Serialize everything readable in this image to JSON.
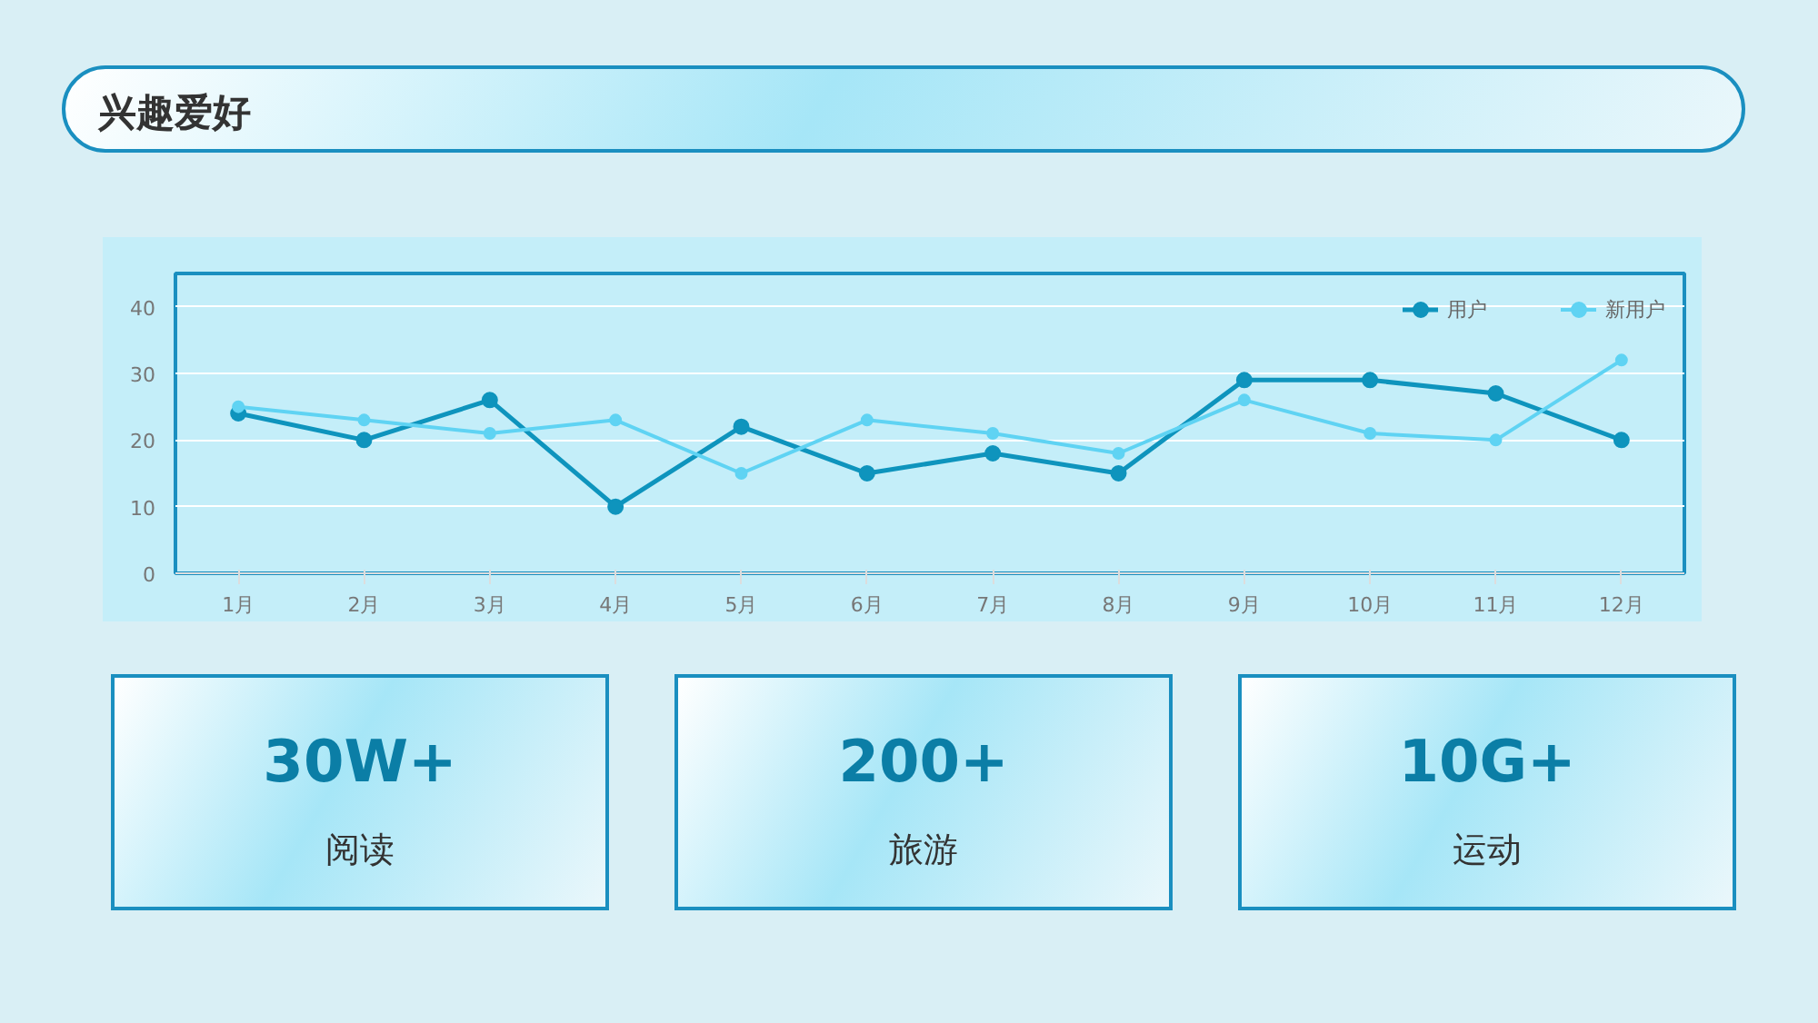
{
  "chart_data": [
    {
      "type": "line",
      "title": "兴趣爱好",
      "categories": [
        "1月",
        "2月",
        "3月",
        "4月",
        "5月",
        "6月",
        "7月",
        "8月",
        "9月",
        "10月",
        "11月",
        "12月"
      ],
      "series": [
        {
          "name": "用户",
          "color": "#0e94bd",
          "values": [
            24,
            20,
            26,
            10,
            22,
            15,
            18,
            15,
            29,
            29,
            27,
            20
          ]
        },
        {
          "name": "新用户",
          "color": "#5fd3f3",
          "values": [
            25,
            23,
            21,
            23,
            15,
            23,
            21,
            18,
            26,
            21,
            20,
            32
          ]
        }
      ],
      "ylim": [
        0,
        45
      ],
      "yticks": [
        0,
        10,
        20,
        30,
        40
      ],
      "grid": "y",
      "legend": "top right",
      "marker": "circle"
    },
    {
      "type": "other",
      "title": "30W+",
      "subtitle": "阅读"
    },
    {
      "type": "other",
      "title": "200+",
      "subtitle": "旅游"
    },
    {
      "type": "other",
      "title": "10G+",
      "subtitle": "运动"
    }
  ]
}
